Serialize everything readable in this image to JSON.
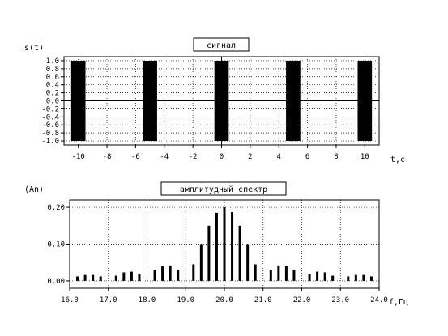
{
  "chart_data": [
    {
      "type": "area",
      "title": "сигнал",
      "ylabel": "s(t)",
      "xlabel": "t,c",
      "xlim": [
        -11,
        11
      ],
      "ylim": [
        -1.1,
        1.1
      ],
      "grid": true,
      "x_ticks": [
        -10,
        -8,
        -6,
        -4,
        -2,
        0,
        2,
        4,
        6,
        8,
        10
      ],
      "x_tick_labels": [
        "-10",
        "-8",
        "-6",
        "-4",
        "-2",
        "0",
        "2",
        "4",
        "6",
        "8",
        "10"
      ],
      "y_ticks": [
        1.0,
        0.8,
        0.6,
        0.4,
        0.2,
        0.0,
        -0.2,
        -0.4,
        -0.6,
        -0.8,
        -1.0
      ],
      "y_tick_labels": [
        "1.0",
        "0.8",
        "0.6",
        "0.4",
        "0.2",
        "0.0",
        "-0.2",
        "-0.4",
        "-0.6",
        "-0.8",
        "-1.0"
      ],
      "pulses": [
        {
          "t_start": -10.5,
          "t_end": -9.5
        },
        {
          "t_start": -5.5,
          "t_end": -4.5
        },
        {
          "t_start": -0.5,
          "t_end": 0.5
        },
        {
          "t_start": 4.5,
          "t_end": 5.5
        },
        {
          "t_start": 9.5,
          "t_end": 10.5
        }
      ],
      "pulse_amplitude": [
        -1.0,
        1.0
      ],
      "color": "#000000"
    },
    {
      "type": "bar",
      "title": "амплитудный спектр",
      "ylabel": "(An)",
      "xlabel": "f,Гц",
      "xlim": [
        16.0,
        24.0
      ],
      "ylim": [
        -0.02,
        0.22
      ],
      "grid": true,
      "x_ticks": [
        16.0,
        17.0,
        18.0,
        19.0,
        20.0,
        21.0,
        22.0,
        23.0,
        24.0
      ],
      "x_tick_labels": [
        "16.0",
        "17.0",
        "18.0",
        "19.0",
        "20.0",
        "21.0",
        "22.0",
        "23.0",
        "24.0"
      ],
      "y_ticks": [
        0.2,
        0.1,
        0.0
      ],
      "y_tick_labels": [
        "0.20",
        "0.10",
        "0.00"
      ],
      "x": [
        16.2,
        16.4,
        16.6,
        16.8,
        17.2,
        17.4,
        17.6,
        17.8,
        18.2,
        18.4,
        18.6,
        18.8,
        19.2,
        19.4,
        19.6,
        19.8,
        20.0,
        20.2,
        20.4,
        20.6,
        20.8,
        21.2,
        21.4,
        21.6,
        21.8,
        22.2,
        22.4,
        22.6,
        22.8,
        23.2,
        23.4,
        23.6,
        23.8
      ],
      "values": [
        0.012,
        0.016,
        0.016,
        0.012,
        0.014,
        0.023,
        0.025,
        0.018,
        0.03,
        0.04,
        0.042,
        0.03,
        0.045,
        0.1,
        0.15,
        0.185,
        0.2,
        0.187,
        0.15,
        0.1,
        0.045,
        0.03,
        0.042,
        0.04,
        0.03,
        0.018,
        0.025,
        0.023,
        0.014,
        0.012,
        0.016,
        0.016,
        0.012
      ],
      "color": "#000000"
    }
  ]
}
